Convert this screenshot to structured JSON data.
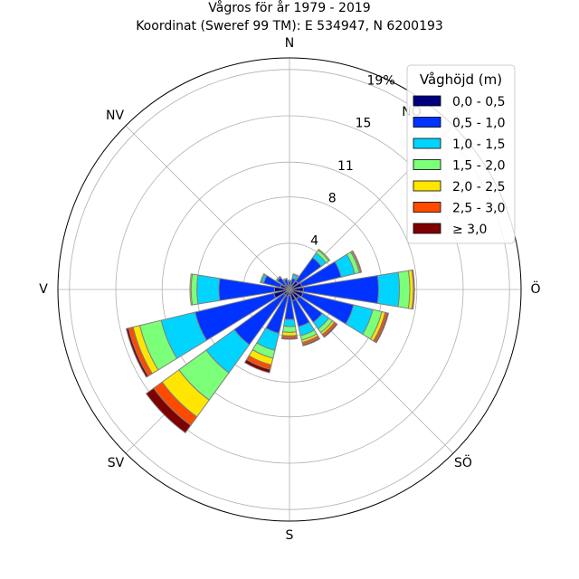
{
  "chart_data": {
    "type": "windrose",
    "title": "Vågros för år 1979 - 2019",
    "subtitle": "Koordinat (Sweref 99 TM): E 534947, N 6200193",
    "directions": [
      "N",
      "NNÖ",
      "NÖ",
      "ÖNÖ",
      "Ö",
      "ÖSÖ",
      "SÖ",
      "SSÖ",
      "S",
      "SSV",
      "SV",
      "VSV",
      "V",
      "VNV",
      "NV",
      "NNV"
    ],
    "compass_labels": [
      "N",
      "NÖ",
      "Ö",
      "SÖ",
      "S",
      "SV",
      "V",
      "NV"
    ],
    "radial_ticks": [
      4,
      8,
      11,
      15,
      19
    ],
    "radial_tick_labels": [
      "4",
      "8",
      "11",
      "15",
      "19%"
    ],
    "rmax": 20,
    "legend": {
      "title": "Våghöjd (m)",
      "placement": "top-right"
    },
    "series": [
      {
        "name": "0,0 - 0,5",
        "color": "#00007f",
        "values": [
          0.3,
          0.4,
          0.9,
          1.1,
          1.2,
          1.2,
          1.0,
          1.0,
          0.5,
          0.6,
          0.6,
          1.4,
          1.3,
          0.8,
          0.5,
          0.3
        ]
      },
      {
        "name": "0,5 - 1,0",
        "color": "#0033ff",
        "values": [
          0.4,
          0.6,
          2.5,
          3.5,
          6.5,
          4.5,
          2.5,
          2.3,
          2.1,
          3.3,
          5.3,
          7.0,
          4.8,
          1.5,
          0.8,
          0.6
        ]
      },
      {
        "name": "1,0 - 1,5",
        "color": "#00d4ff",
        "values": [
          0.1,
          0.3,
          0.5,
          1.2,
          1.8,
          1.7,
          0.7,
          0.8,
          0.6,
          1.5,
          3.0,
          3.0,
          1.9,
          0.2,
          0.1,
          0.1
        ]
      },
      {
        "name": "1,5 - 2,0",
        "color": "#7cff79",
        "values": [
          0.0,
          0.1,
          0.3,
          0.4,
          0.9,
          0.8,
          0.4,
          0.4,
          0.5,
          0.7,
          2.9,
          1.9,
          0.5,
          0.1,
          0.0,
          0.0
        ]
      },
      {
        "name": "2,0 - 2,5",
        "color": "#ffe600",
        "values": [
          0.0,
          0.0,
          0.1,
          0.1,
          0.3,
          0.3,
          0.2,
          0.2,
          0.3,
          0.6,
          1.8,
          0.6,
          0.1,
          0.0,
          0.0,
          0.0
        ]
      },
      {
        "name": "2,5 - 3,0",
        "color": "#ff4a00",
        "values": [
          0.0,
          0.0,
          0.0,
          0.1,
          0.1,
          0.2,
          0.2,
          0.2,
          0.2,
          0.4,
          0.9,
          0.4,
          0.0,
          0.0,
          0.0,
          0.0
        ]
      },
      {
        "name": "≥ 3,0",
        "color": "#7f0000",
        "values": [
          0.0,
          0.0,
          0.0,
          0.0,
          0.0,
          0.1,
          0.1,
          0.1,
          0.1,
          0.3,
          0.8,
          0.2,
          0.0,
          0.0,
          0.0,
          0.0
        ]
      }
    ]
  }
}
